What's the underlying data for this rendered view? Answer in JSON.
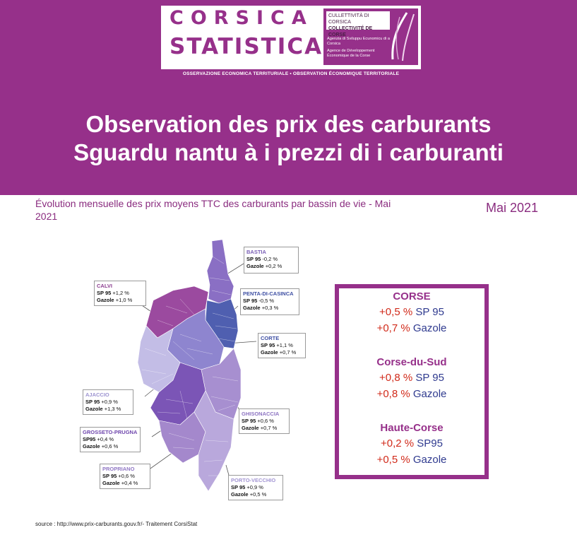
{
  "logo": {
    "word1": "CORSICA",
    "word2": "STATISTICA",
    "institution_line1": "CULLETTIVITÀ DI CORSICA",
    "institution_line2": "COLLECTIVITÉ DE CORSE",
    "agency_co": "Agenzia di Sviluppu Ecunomicu di a Corsica",
    "agency_fr": "Agence de Développement Économique de la Corse",
    "strip": "OSSERVAZIONE ECONOMICA TERRITURIALE • OBSERVATION ÉCONOMIQUE TERRITORIALE"
  },
  "title": {
    "line1": "Observation des prix des carburants",
    "line2": "Sguardu nantu à i prezzi di i carburanti"
  },
  "subtitle": "Évolution mensuelle des prix moyens TTC des carburants par bassin de vie - Mai 2021",
  "month": "Mai 2021",
  "basins": [
    {
      "name": "BASTIA",
      "l1": "SP 95",
      "v1": "-0,2 %",
      "l2": "Gazole",
      "v2": "+0,2 %",
      "color": "#8a6fc4"
    },
    {
      "name": "CALVI",
      "l1": "SP 95",
      "v1": "+1,2 %",
      "l2": "Gazole",
      "v2": "+1,0 %",
      "color": "#9b4a9f"
    },
    {
      "name": "PENTA-DI-CASINCA",
      "l1": "SP 95",
      "v1": "-0,5 %",
      "l2": "Gazole",
      "v2": "+0,3 %",
      "color": "#4f5fb0"
    },
    {
      "name": "CORTE",
      "l1": "SP 95",
      "v1": "+1,1 %",
      "l2": "Gazole",
      "v2": "+0,7 %",
      "color": "#8e85cf"
    },
    {
      "name": "AJACCIO",
      "l1": "SP 95",
      "v1": "+0,9 %",
      "l2": "Gazole",
      "v2": "+1,3 %",
      "color": "#c3bde6"
    },
    {
      "name": "GHISONACCIA",
      "l1": "SP 95",
      "v1": "+0,6 %",
      "l2": "Gazole",
      "v2": "+0,7 %",
      "color": "#a78fd0"
    },
    {
      "name": "GROSSETO-PRUGNA",
      "l1": "SP95",
      "v1": "+0,4 %",
      "l2": "Gazole",
      "v2": "+0,6 %",
      "color": "#7b55b6"
    },
    {
      "name": "PROPRIANO",
      "l1": "SP 95",
      "v1": "+0,6 %",
      "l2": "Gazole",
      "v2": "+0,4 %",
      "color": "#a488cc"
    },
    {
      "name": "PORTO-VECCHIO",
      "l1": "SP 95",
      "v1": "+0,9 %",
      "l2": "Gazole",
      "v2": "+0,5 %",
      "color": "#b9a8dc"
    }
  ],
  "summary": [
    {
      "region": "CORSE",
      "v1": "+0,5 %",
      "f1": "SP 95",
      "v2": "+0,7 %",
      "f2": "Gazole"
    },
    {
      "region": "Corse-du-Sud",
      "v1": "+0,8 %",
      "f1": "SP 95",
      "v2": "+0,8 %",
      "f2": "Gazole"
    },
    {
      "region": "Haute-Corse",
      "v1": "+0,2 %",
      "f1": "SP95",
      "v2": "+0,5 %",
      "f2": "Gazole"
    }
  ],
  "source": "source : http://www.prix-carburants.gouv.fr/- Traitement CorsiStat",
  "colors": {
    "brand": "#96308a",
    "value_red": "#d12a1a",
    "fuel_blue": "#2f3a8f"
  }
}
